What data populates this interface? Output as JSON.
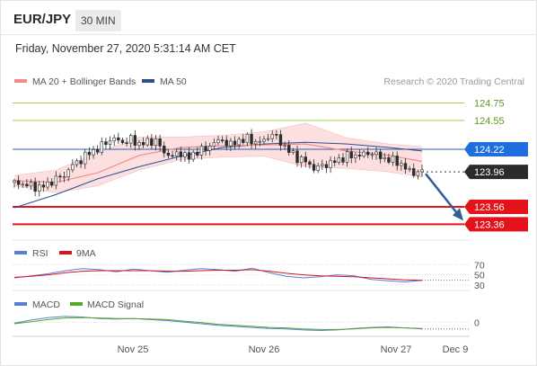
{
  "header": {
    "pair": "EUR/JPY",
    "timeframe": "30 MIN",
    "datetime": "Friday, November 27, 2020 5:31:14 AM CET"
  },
  "colors": {
    "ma20": "#f48b8b",
    "ma50": "#2a4f8f",
    "resistance_line": "#8ec63f",
    "current_line": "#2e5fb0",
    "support_line": "#e3121b",
    "current_tag": "#2b2b2b",
    "pivot_tag": "#1e6ee0",
    "support_tag": "#e3121b",
    "arrow": "#2e5f96",
    "rsi": "#5b7fd6",
    "rsi_ma": "#d8141b",
    "macd": "#5b7fd6",
    "macd_signal": "#5aa628",
    "candle_up": "#2c2c2c",
    "candle_down": "#2c2c2c",
    "band_fill": "#fbd5d5"
  },
  "chart_data": [
    {
      "type": "candlestick",
      "legend": [
        {
          "name": "MA 20 + Bollinger Bands",
          "color": "#f48b8b"
        },
        {
          "name": "MA 50",
          "color": "#2a4f8f"
        }
      ],
      "credit": "Research © 2020 Trading Central",
      "ylim": [
        123.23,
        124.9
      ],
      "levels": [
        {
          "label": "124.75",
          "value": 124.75,
          "kind": "resistance"
        },
        {
          "label": "124.55",
          "value": 124.55,
          "kind": "resistance"
        },
        {
          "label": "124.22",
          "value": 124.22,
          "kind": "pivot"
        },
        {
          "label": "123.96",
          "value": 123.96,
          "kind": "current"
        },
        {
          "label": "123.56",
          "value": 123.56,
          "kind": "support"
        },
        {
          "label": "123.36",
          "value": 123.36,
          "kind": "support"
        }
      ],
      "x_ticks": [
        "Nov 25",
        "Nov 26",
        "Nov 27",
        "Dec 9"
      ],
      "price_path": [
        [
          0,
          123.84
        ],
        [
          4,
          123.82
        ],
        [
          8,
          123.8
        ],
        [
          12,
          123.78
        ],
        [
          16,
          123.82
        ],
        [
          20,
          123.88
        ],
        [
          24,
          123.92
        ],
        [
          28,
          124.04
        ],
        [
          32,
          124.1
        ],
        [
          36,
          124.18
        ],
        [
          40,
          124.22
        ],
        [
          44,
          124.3
        ],
        [
          48,
          124.34
        ],
        [
          52,
          124.3
        ],
        [
          56,
          124.33
        ],
        [
          60,
          124.28
        ],
        [
          64,
          124.3
        ],
        [
          68,
          124.32
        ],
        [
          72,
          124.18
        ],
        [
          76,
          124.14
        ],
        [
          80,
          124.18
        ],
        [
          84,
          124.12
        ],
        [
          88,
          124.2
        ],
        [
          92,
          124.22
        ],
        [
          96,
          124.3
        ],
        [
          100,
          124.32
        ],
        [
          104,
          124.27
        ],
        [
          108,
          124.32
        ],
        [
          112,
          124.34
        ],
        [
          116,
          124.3
        ],
        [
          120,
          124.32
        ],
        [
          124,
          124.4
        ],
        [
          128,
          124.3
        ],
        [
          132,
          124.2
        ],
        [
          136,
          124.12
        ],
        [
          140,
          124.08
        ],
        [
          144,
          124.0
        ],
        [
          148,
          124.03
        ],
        [
          152,
          124.06
        ],
        [
          156,
          124.1
        ],
        [
          160,
          124.14
        ],
        [
          164,
          124.15
        ],
        [
          168,
          124.16
        ],
        [
          172,
          124.18
        ],
        [
          176,
          124.13
        ],
        [
          180,
          124.1
        ],
        [
          184,
          124.08
        ],
        [
          188,
          124.0
        ],
        [
          192,
          123.95
        ],
        [
          196,
          123.96
        ]
      ],
      "ma20_path": [
        [
          0,
          123.86
        ],
        [
          20,
          123.84
        ],
        [
          40,
          123.95
        ],
        [
          60,
          124.15
        ],
        [
          80,
          124.24
        ],
        [
          100,
          124.26
        ],
        [
          120,
          124.27
        ],
        [
          140,
          124.28
        ],
        [
          160,
          124.2
        ],
        [
          180,
          124.15
        ],
        [
          196,
          124.08
        ]
      ],
      "band_upper": [
        [
          0,
          123.92
        ],
        [
          20,
          123.98
        ],
        [
          40,
          124.18
        ],
        [
          60,
          124.36
        ],
        [
          80,
          124.36
        ],
        [
          100,
          124.38
        ],
        [
          120,
          124.42
        ],
        [
          140,
          124.52
        ],
        [
          160,
          124.35
        ],
        [
          180,
          124.28
        ],
        [
          196,
          124.25
        ]
      ],
      "band_lower": [
        [
          0,
          123.8
        ],
        [
          20,
          123.72
        ],
        [
          40,
          123.8
        ],
        [
          60,
          123.98
        ],
        [
          80,
          124.1
        ],
        [
          100,
          124.13
        ],
        [
          120,
          124.14
        ],
        [
          140,
          124.02
        ],
        [
          160,
          124.0
        ],
        [
          180,
          123.96
        ],
        [
          196,
          123.9
        ]
      ],
      "ma50_path": [
        [
          0,
          123.55
        ],
        [
          20,
          123.7
        ],
        [
          40,
          123.88
        ],
        [
          60,
          124.02
        ],
        [
          80,
          124.14
        ],
        [
          100,
          124.24
        ],
        [
          120,
          124.28
        ],
        [
          140,
          124.3
        ],
        [
          160,
          124.28
        ],
        [
          180,
          124.24
        ],
        [
          196,
          124.2
        ]
      ]
    },
    {
      "type": "line",
      "legend": [
        {
          "name": "RSI",
          "color": "#5b7fd6"
        },
        {
          "name": "9MA",
          "color": "#d8141b"
        }
      ],
      "ylim": [
        28,
        74
      ],
      "levels": [
        70,
        50,
        30
      ],
      "series": [
        {
          "name": "RSI",
          "values": [
            44,
            48,
            52,
            58,
            62,
            60,
            56,
            61,
            58,
            55,
            59,
            62,
            60,
            57,
            63,
            54,
            47,
            44,
            46,
            50,
            48,
            41,
            38,
            36,
            39
          ]
        },
        {
          "name": "9MA",
          "values": [
            45,
            47,
            50,
            54,
            57,
            58,
            58,
            58,
            58,
            57,
            57,
            58,
            59,
            59,
            60,
            57,
            53,
            50,
            48,
            47,
            46,
            44,
            42,
            40,
            39
          ]
        }
      ]
    },
    {
      "type": "line",
      "legend": [
        {
          "name": "MACD",
          "color": "#5b7fd6"
        },
        {
          "name": "MACD Signal",
          "color": "#5aa628"
        }
      ],
      "ylim": [
        -0.22,
        0.16
      ],
      "levels": [
        0
      ],
      "series": [
        {
          "name": "MACD",
          "values": [
            -0.02,
            0.04,
            0.09,
            0.11,
            0.1,
            0.07,
            0.06,
            0.07,
            0.05,
            0.03,
            0.0,
            -0.03,
            -0.06,
            -0.08,
            -0.1,
            -0.12,
            -0.13,
            -0.15,
            -0.16,
            -0.15,
            -0.12,
            -0.1,
            -0.09,
            -0.11,
            -0.13
          ]
        },
        {
          "name": "MACD Signal",
          "values": [
            -0.03,
            0.01,
            0.05,
            0.08,
            0.09,
            0.08,
            0.07,
            0.07,
            0.06,
            0.05,
            0.02,
            -0.01,
            -0.04,
            -0.06,
            -0.08,
            -0.1,
            -0.11,
            -0.13,
            -0.14,
            -0.14,
            -0.13,
            -0.11,
            -0.1,
            -0.11,
            -0.12
          ]
        }
      ]
    }
  ]
}
